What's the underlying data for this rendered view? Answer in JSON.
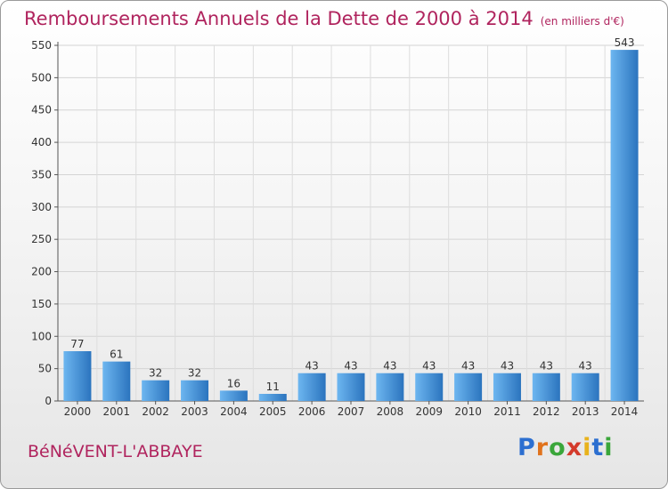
{
  "header": {
    "title": "Remboursements Annuels de la Dette de 2000 à 2014",
    "unit": "(en milliers d'€)"
  },
  "footer": {
    "commune": "BéNéVENT-L'ABBAYE",
    "logo": "Proxiti"
  },
  "colors": {
    "title": "#b0245e",
    "bar_light": "#5aa9ec",
    "bar_dark": "#2b74be"
  },
  "chart_data": {
    "type": "bar",
    "title": "Remboursements Annuels de la Dette de 2000 à 2014",
    "subtitle": "(en milliers d'€)",
    "categories": [
      "2000",
      "2001",
      "2002",
      "2003",
      "2004",
      "2005",
      "2006",
      "2007",
      "2008",
      "2009",
      "2010",
      "2011",
      "2012",
      "2013",
      "2014"
    ],
    "values": [
      77,
      61,
      32,
      32,
      16,
      11,
      43,
      43,
      43,
      43,
      43,
      43,
      43,
      43,
      543
    ],
    "ylim": [
      0,
      550
    ],
    "yticks": [
      0,
      50,
      100,
      150,
      200,
      250,
      300,
      350,
      400,
      450,
      500,
      550
    ],
    "grid": true
  }
}
